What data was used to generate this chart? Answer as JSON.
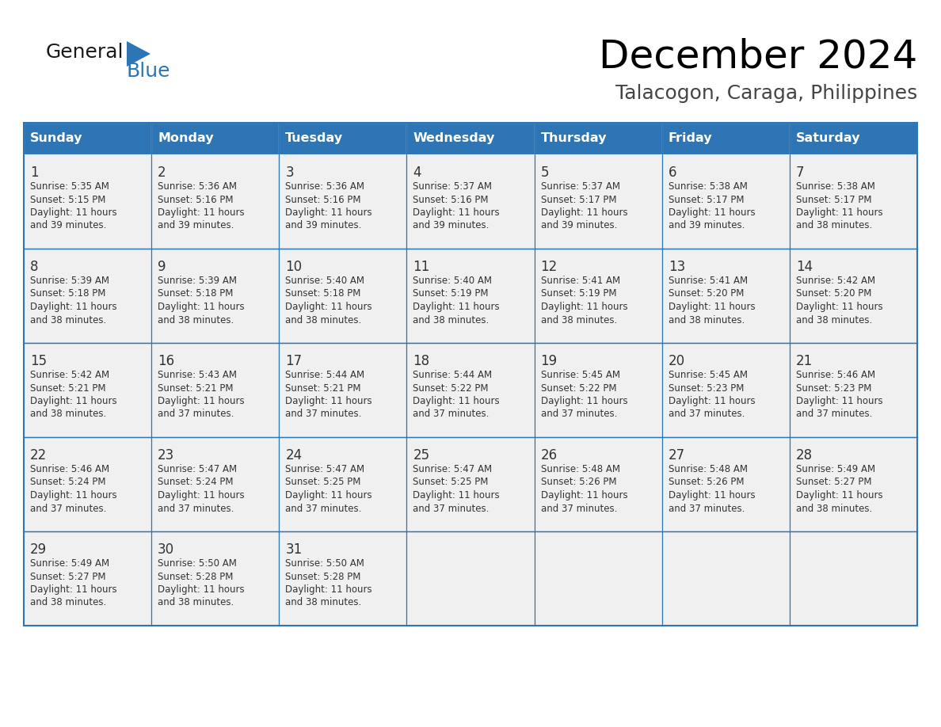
{
  "title": "December 2024",
  "subtitle": "Talacogon, Caraga, Philippines",
  "header_bg_color": "#2E75B6",
  "header_text_color": "#FFFFFF",
  "cell_bg_color": "#F0F0F0",
  "border_color": "#2E75B6",
  "text_color": "#333333",
  "days_of_week": [
    "Sunday",
    "Monday",
    "Tuesday",
    "Wednesday",
    "Thursday",
    "Friday",
    "Saturday"
  ],
  "calendar_data": [
    [
      {
        "day": 1,
        "sunrise": "5:35 AM",
        "sunset": "5:15 PM",
        "daylight_mins": "39"
      },
      {
        "day": 2,
        "sunrise": "5:36 AM",
        "sunset": "5:16 PM",
        "daylight_mins": "39"
      },
      {
        "day": 3,
        "sunrise": "5:36 AM",
        "sunset": "5:16 PM",
        "daylight_mins": "39"
      },
      {
        "day": 4,
        "sunrise": "5:37 AM",
        "sunset": "5:16 PM",
        "daylight_mins": "39"
      },
      {
        "day": 5,
        "sunrise": "5:37 AM",
        "sunset": "5:17 PM",
        "daylight_mins": "39"
      },
      {
        "day": 6,
        "sunrise": "5:38 AM",
        "sunset": "5:17 PM",
        "daylight_mins": "39"
      },
      {
        "day": 7,
        "sunrise": "5:38 AM",
        "sunset": "5:17 PM",
        "daylight_mins": "38"
      }
    ],
    [
      {
        "day": 8,
        "sunrise": "5:39 AM",
        "sunset": "5:18 PM",
        "daylight_mins": "38"
      },
      {
        "day": 9,
        "sunrise": "5:39 AM",
        "sunset": "5:18 PM",
        "daylight_mins": "38"
      },
      {
        "day": 10,
        "sunrise": "5:40 AM",
        "sunset": "5:18 PM",
        "daylight_mins": "38"
      },
      {
        "day": 11,
        "sunrise": "5:40 AM",
        "sunset": "5:19 PM",
        "daylight_mins": "38"
      },
      {
        "day": 12,
        "sunrise": "5:41 AM",
        "sunset": "5:19 PM",
        "daylight_mins": "38"
      },
      {
        "day": 13,
        "sunrise": "5:41 AM",
        "sunset": "5:20 PM",
        "daylight_mins": "38"
      },
      {
        "day": 14,
        "sunrise": "5:42 AM",
        "sunset": "5:20 PM",
        "daylight_mins": "38"
      }
    ],
    [
      {
        "day": 15,
        "sunrise": "5:42 AM",
        "sunset": "5:21 PM",
        "daylight_mins": "38"
      },
      {
        "day": 16,
        "sunrise": "5:43 AM",
        "sunset": "5:21 PM",
        "daylight_mins": "37"
      },
      {
        "day": 17,
        "sunrise": "5:44 AM",
        "sunset": "5:21 PM",
        "daylight_mins": "37"
      },
      {
        "day": 18,
        "sunrise": "5:44 AM",
        "sunset": "5:22 PM",
        "daylight_mins": "37"
      },
      {
        "day": 19,
        "sunrise": "5:45 AM",
        "sunset": "5:22 PM",
        "daylight_mins": "37"
      },
      {
        "day": 20,
        "sunrise": "5:45 AM",
        "sunset": "5:23 PM",
        "daylight_mins": "37"
      },
      {
        "day": 21,
        "sunrise": "5:46 AM",
        "sunset": "5:23 PM",
        "daylight_mins": "37"
      }
    ],
    [
      {
        "day": 22,
        "sunrise": "5:46 AM",
        "sunset": "5:24 PM",
        "daylight_mins": "37"
      },
      {
        "day": 23,
        "sunrise": "5:47 AM",
        "sunset": "5:24 PM",
        "daylight_mins": "37"
      },
      {
        "day": 24,
        "sunrise": "5:47 AM",
        "sunset": "5:25 PM",
        "daylight_mins": "37"
      },
      {
        "day": 25,
        "sunrise": "5:47 AM",
        "sunset": "5:25 PM",
        "daylight_mins": "37"
      },
      {
        "day": 26,
        "sunrise": "5:48 AM",
        "sunset": "5:26 PM",
        "daylight_mins": "37"
      },
      {
        "day": 27,
        "sunrise": "5:48 AM",
        "sunset": "5:26 PM",
        "daylight_mins": "37"
      },
      {
        "day": 28,
        "sunrise": "5:49 AM",
        "sunset": "5:27 PM",
        "daylight_mins": "38"
      }
    ],
    [
      {
        "day": 29,
        "sunrise": "5:49 AM",
        "sunset": "5:27 PM",
        "daylight_mins": "38"
      },
      {
        "day": 30,
        "sunrise": "5:50 AM",
        "sunset": "5:28 PM",
        "daylight_mins": "38"
      },
      {
        "day": 31,
        "sunrise": "5:50 AM",
        "sunset": "5:28 PM",
        "daylight_mins": "38"
      },
      null,
      null,
      null,
      null
    ]
  ],
  "logo_general_color": "#1a1a1a",
  "logo_blue_color": "#2E75B6",
  "logo_triangle_color": "#2E75B6"
}
